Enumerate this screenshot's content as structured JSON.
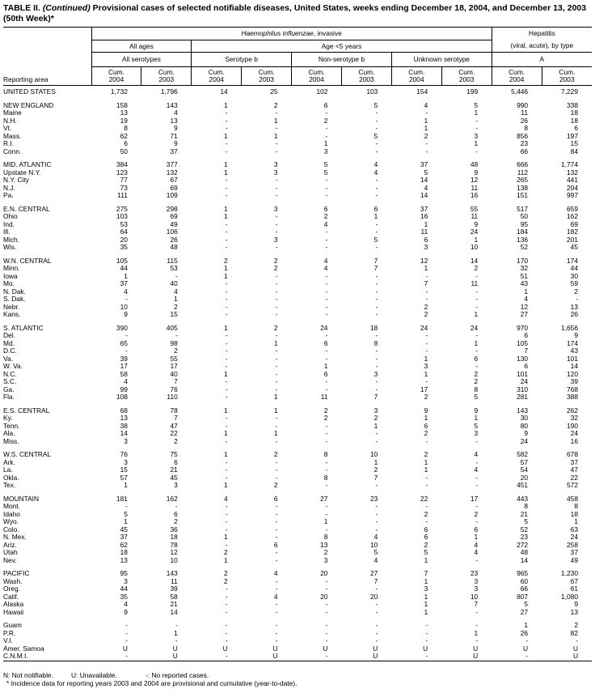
{
  "title": {
    "prefix": "TABLE II.",
    "continued": "(Continued)",
    "text": "Provisional cases of selected notifiable diseases, United States, weeks ending December 18, 2004, and December 13, 2003 (50th Week)*"
  },
  "headers": {
    "reporting_area": "Reporting area",
    "haemophilus": "Haemophilus influenzae",
    "haemophilus_suffix": ", invasive",
    "hepatitis": "Hepatitis",
    "hepatitis_sub": "(viral, acute), by type",
    "all_ages": "All ages",
    "age_under5": "Age <5 years",
    "all_serotypes": "All serotypes",
    "serotype_b": "Serotype b",
    "non_serotype_b": "Non-serotype b",
    "unknown_serotype": "Unknown serotype",
    "hep_a": "A",
    "cum": "Cum.",
    "y2004": "2004",
    "y2003": "2003"
  },
  "groups": [
    [
      [
        "UNITED STATES",
        "1,732",
        "1,796",
        "14",
        "25",
        "102",
        "103",
        "154",
        "199",
        "5,446",
        "7,229"
      ]
    ],
    [
      [
        "NEW ENGLAND",
        "158",
        "143",
        "1",
        "2",
        "6",
        "5",
        "4",
        "5",
        "990",
        "338"
      ],
      [
        "Maine",
        "13",
        "4",
        "-",
        "-",
        "-",
        "-",
        "-",
        "1",
        "11",
        "18"
      ],
      [
        "N.H.",
        "19",
        "13",
        "-",
        "1",
        "2",
        "-",
        "1",
        "-",
        "26",
        "18"
      ],
      [
        "Vt.",
        "8",
        "9",
        "-",
        "-",
        "-",
        "-",
        "1",
        "-",
        "8",
        "6"
      ],
      [
        "Mass.",
        "62",
        "71",
        "1",
        "1",
        "-",
        "5",
        "2",
        "3",
        "856",
        "197"
      ],
      [
        "R.I.",
        "6",
        "9",
        "-",
        "-",
        "1",
        "-",
        "-",
        "1",
        "23",
        "15"
      ],
      [
        "Conn.",
        "50",
        "37",
        "-",
        "-",
        "3",
        "-",
        "-",
        "-",
        "66",
        "84"
      ]
    ],
    [
      [
        "MID. ATLANTIC",
        "384",
        "377",
        "1",
        "3",
        "5",
        "4",
        "37",
        "48",
        "666",
        "1,774"
      ],
      [
        "Upstate N.Y.",
        "123",
        "132",
        "1",
        "3",
        "5",
        "4",
        "5",
        "9",
        "112",
        "132"
      ],
      [
        "N.Y. City",
        "77",
        "67",
        "-",
        "-",
        "-",
        "-",
        "14",
        "12",
        "265",
        "441"
      ],
      [
        "N.J.",
        "73",
        "69",
        "-",
        "-",
        "-",
        "-",
        "4",
        "11",
        "138",
        "204"
      ],
      [
        "Pa.",
        "111",
        "109",
        "-",
        "-",
        "-",
        "-",
        "14",
        "16",
        "151",
        "997"
      ]
    ],
    [
      [
        "E.N. CENTRAL",
        "275",
        "298",
        "1",
        "3",
        "6",
        "6",
        "37",
        "55",
        "517",
        "659"
      ],
      [
        "Ohio",
        "103",
        "69",
        "1",
        "-",
        "2",
        "1",
        "16",
        "11",
        "50",
        "162"
      ],
      [
        "Ind.",
        "53",
        "49",
        "-",
        "-",
        "4",
        "-",
        "1",
        "9",
        "95",
        "69"
      ],
      [
        "Ill.",
        "64",
        "106",
        "-",
        "-",
        "-",
        "-",
        "11",
        "24",
        "184",
        "182"
      ],
      [
        "Mich.",
        "20",
        "26",
        "-",
        "3",
        "-",
        "5",
        "6",
        "1",
        "136",
        "201"
      ],
      [
        "Wis.",
        "35",
        "48",
        "-",
        "-",
        "-",
        "-",
        "3",
        "10",
        "52",
        "45"
      ]
    ],
    [
      [
        "W.N. CENTRAL",
        "105",
        "115",
        "2",
        "2",
        "4",
        "7",
        "12",
        "14",
        "170",
        "174"
      ],
      [
        "Minn.",
        "44",
        "53",
        "1",
        "2",
        "4",
        "7",
        "1",
        "2",
        "32",
        "44"
      ],
      [
        "Iowa",
        "1",
        "-",
        "1",
        "-",
        "-",
        "-",
        "-",
        "-",
        "51",
        "30"
      ],
      [
        "Mo.",
        "37",
        "40",
        "-",
        "-",
        "-",
        "-",
        "7",
        "11",
        "43",
        "59"
      ],
      [
        "N. Dak.",
        "4",
        "4",
        "-",
        "-",
        "-",
        "-",
        "-",
        "-",
        "1",
        "2"
      ],
      [
        "S. Dak.",
        "-",
        "1",
        "-",
        "-",
        "-",
        "-",
        "-",
        "-",
        "4",
        "-"
      ],
      [
        "Nebr.",
        "10",
        "2",
        "-",
        "-",
        "-",
        "-",
        "2",
        "-",
        "12",
        "13"
      ],
      [
        "Kans.",
        "9",
        "15",
        "-",
        "-",
        "-",
        "-",
        "2",
        "1",
        "27",
        "26"
      ]
    ],
    [
      [
        "S. ATLANTIC",
        "390",
        "405",
        "1",
        "2",
        "24",
        "18",
        "24",
        "24",
        "970",
        "1,656"
      ],
      [
        "Del.",
        "-",
        "-",
        "-",
        "-",
        "-",
        "-",
        "-",
        "-",
        "6",
        "9"
      ],
      [
        "Md.",
        "65",
        "98",
        "-",
        "1",
        "6",
        "8",
        "-",
        "1",
        "105",
        "174"
      ],
      [
        "D.C.",
        "-",
        "2",
        "-",
        "-",
        "-",
        "-",
        "-",
        "-",
        "7",
        "43"
      ],
      [
        "Va.",
        "39",
        "55",
        "-",
        "-",
        "-",
        "-",
        "1",
        "6",
        "130",
        "101"
      ],
      [
        "W. Va.",
        "17",
        "17",
        "-",
        "-",
        "1",
        "-",
        "3",
        "-",
        "6",
        "14"
      ],
      [
        "N.C.",
        "58",
        "40",
        "1",
        "-",
        "6",
        "3",
        "1",
        "2",
        "101",
        "120"
      ],
      [
        "S.C.",
        "4",
        "7",
        "-",
        "-",
        "-",
        "-",
        "-",
        "2",
        "24",
        "39"
      ],
      [
        "Ga.",
        "99",
        "76",
        "-",
        "-",
        "-",
        "-",
        "17",
        "8",
        "310",
        "768"
      ],
      [
        "Fla.",
        "108",
        "110",
        "-",
        "1",
        "11",
        "7",
        "2",
        "5",
        "281",
        "388"
      ]
    ],
    [
      [
        "E.S. CENTRAL",
        "68",
        "78",
        "1",
        "1",
        "2",
        "3",
        "9",
        "9",
        "143",
        "262"
      ],
      [
        "Ky.",
        "13",
        "7",
        "-",
        "-",
        "2",
        "2",
        "1",
        "1",
        "30",
        "32"
      ],
      [
        "Tenn.",
        "38",
        "47",
        "-",
        "-",
        "-",
        "1",
        "6",
        "5",
        "80",
        "190"
      ],
      [
        "Ala.",
        "14",
        "22",
        "1",
        "1",
        "-",
        "-",
        "2",
        "3",
        "9",
        "24"
      ],
      [
        "Miss.",
        "3",
        "2",
        "-",
        "-",
        "-",
        "-",
        "-",
        "-",
        "24",
        "16"
      ]
    ],
    [
      [
        "W.S. CENTRAL",
        "76",
        "75",
        "1",
        "2",
        "8",
        "10",
        "2",
        "4",
        "582",
        "678"
      ],
      [
        "Ark.",
        "3",
        "6",
        "-",
        "-",
        "-",
        "1",
        "1",
        "-",
        "57",
        "37"
      ],
      [
        "La.",
        "15",
        "21",
        "-",
        "-",
        "-",
        "2",
        "1",
        "4",
        "54",
        "47"
      ],
      [
        "Okla.",
        "57",
        "45",
        "-",
        "-",
        "8",
        "7",
        "-",
        "-",
        "20",
        "22"
      ],
      [
        "Tex.",
        "1",
        "3",
        "1",
        "2",
        "-",
        "-",
        "-",
        "-",
        "451",
        "572"
      ]
    ],
    [
      [
        "MOUNTAIN",
        "181",
        "162",
        "4",
        "6",
        "27",
        "23",
        "22",
        "17",
        "443",
        "458"
      ],
      [
        "Mont.",
        "-",
        "-",
        "-",
        "-",
        "-",
        "-",
        "-",
        "-",
        "8",
        "8"
      ],
      [
        "Idaho",
        "5",
        "6",
        "-",
        "-",
        "-",
        "-",
        "2",
        "2",
        "21",
        "18"
      ],
      [
        "Wyo.",
        "1",
        "2",
        "-",
        "-",
        "1",
        "-",
        "-",
        "-",
        "5",
        "1"
      ],
      [
        "Colo.",
        "45",
        "36",
        "-",
        "-",
        "-",
        "-",
        "6",
        "6",
        "52",
        "63"
      ],
      [
        "N. Mex.",
        "37",
        "18",
        "1",
        "-",
        "8",
        "4",
        "6",
        "1",
        "23",
        "24"
      ],
      [
        "Ariz.",
        "62",
        "78",
        "-",
        "6",
        "13",
        "10",
        "2",
        "4",
        "272",
        "258"
      ],
      [
        "Utah",
        "18",
        "12",
        "2",
        "-",
        "2",
        "5",
        "5",
        "4",
        "48",
        "37"
      ],
      [
        "Nev.",
        "13",
        "10",
        "1",
        "-",
        "3",
        "4",
        "1",
        "-",
        "14",
        "49"
      ]
    ],
    [
      [
        "PACIFIC",
        "95",
        "143",
        "2",
        "4",
        "20",
        "27",
        "7",
        "23",
        "965",
        "1,230"
      ],
      [
        "Wash.",
        "3",
        "11",
        "2",
        "-",
        "-",
        "7",
        "1",
        "3",
        "60",
        "67"
      ],
      [
        "Oreg.",
        "44",
        "39",
        "-",
        "-",
        "-",
        "-",
        "3",
        "3",
        "66",
        "61"
      ],
      [
        "Calif.",
        "35",
        "58",
        "-",
        "4",
        "20",
        "20",
        "1",
        "10",
        "807",
        "1,080"
      ],
      [
        "Alaska",
        "4",
        "21",
        "-",
        "-",
        "-",
        "-",
        "1",
        "7",
        "5",
        "9"
      ],
      [
        "Hawaii",
        "9",
        "14",
        "-",
        "-",
        "-",
        "-",
        "1",
        "-",
        "27",
        "13"
      ]
    ],
    [
      [
        "Guam",
        "-",
        "-",
        "-",
        "-",
        "-",
        "-",
        "-",
        "-",
        "1",
        "2"
      ],
      [
        "P.R.",
        "-",
        "1",
        "-",
        "-",
        "-",
        "-",
        "-",
        "1",
        "26",
        "82"
      ],
      [
        "V.I.",
        "-",
        "-",
        "-",
        "-",
        "-",
        "-",
        "-",
        "-",
        "-",
        "-"
      ],
      [
        "Amer. Samoa",
        "U",
        "U",
        "U",
        "U",
        "U",
        "U",
        "U",
        "U",
        "U",
        "U"
      ],
      [
        "C.N.M.I.",
        "-",
        "U",
        "-",
        "U",
        "-",
        "U",
        "-",
        "U",
        "-",
        "U"
      ]
    ]
  ],
  "footnotes": {
    "n": "N: Not notifiable.",
    "u": "U: Unavailable.",
    "dash": "-: No reported cases.",
    "star": "* Incidence data for reporting years 2003 and 2004 are provisional and cumulative (year-to-date)."
  }
}
